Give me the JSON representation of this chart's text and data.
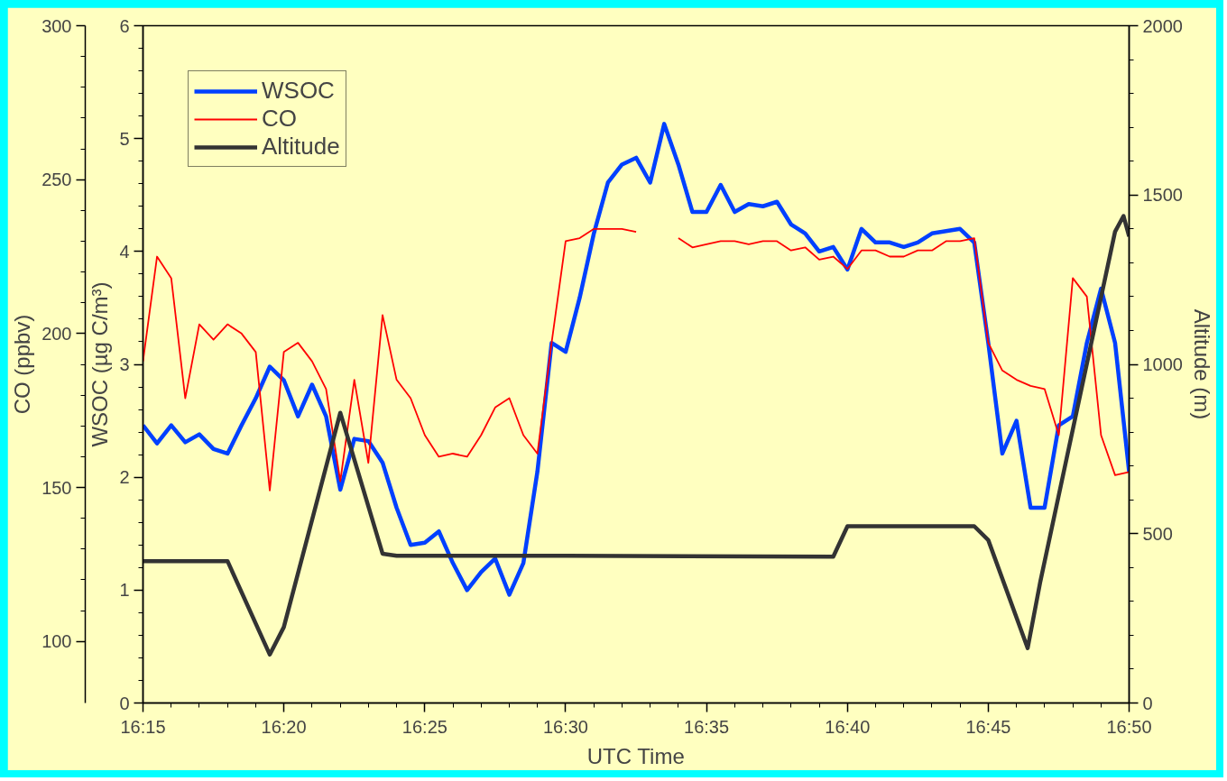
{
  "chart_data": {
    "type": "line",
    "xlabel": "UTC Time",
    "ylabel": "WSOC (µg C/m³)",
    "y2label": "CO (ppbv)",
    "y3label": "Altitude (m)",
    "x": [
      16.25,
      16.2583,
      16.2667,
      16.275,
      16.2833,
      16.2917,
      16.3,
      16.3083,
      16.3167,
      16.325,
      16.3333,
      16.3417,
      16.35,
      16.3583,
      16.3667,
      16.375,
      16.3833,
      16.3917,
      16.4,
      16.4083,
      16.4167,
      16.425,
      16.4333,
      16.4417,
      16.45,
      16.4583,
      16.4667,
      16.475,
      16.4833,
      16.4917,
      16.5,
      16.5083,
      16.5167,
      16.525,
      16.5333,
      16.5417,
      16.55,
      16.5583,
      16.5667,
      16.575,
      16.5833,
      16.5917,
      16.6,
      16.6083,
      16.6167,
      16.625,
      16.6333,
      16.6417,
      16.65,
      16.6583,
      16.6667,
      16.675,
      16.6833,
      16.6917,
      16.7,
      16.7083,
      16.7167,
      16.725,
      16.7333,
      16.7417,
      16.75,
      16.7583,
      16.7667,
      16.775,
      16.7833,
      16.7917,
      16.8,
      16.8083,
      16.8167,
      16.825,
      16.8333
    ],
    "series": [
      {
        "name": "WSOC",
        "color": "#0040ff",
        "values": [
          2.46,
          2.3,
          2.46,
          2.31,
          2.38,
          2.25,
          2.21,
          2.46,
          2.7,
          2.98,
          2.86,
          2.54,
          2.82,
          2.54,
          1.89,
          2.34,
          2.32,
          2.13,
          1.73,
          1.4,
          1.42,
          1.52,
          1.24,
          1.0,
          1.16,
          1.28,
          0.96,
          1.24,
          2.05,
          3.19,
          3.11,
          3.59,
          4.16,
          4.61,
          4.77,
          4.83,
          4.61,
          5.13,
          4.77,
          4.35,
          4.35,
          4.59,
          4.35,
          4.42,
          4.4,
          4.44,
          4.24,
          4.16,
          4.0,
          4.04,
          3.84,
          4.2,
          4.08,
          4.08,
          4.04,
          4.08,
          4.16,
          4.18,
          4.2,
          4.08,
          3.19,
          2.21,
          2.5,
          1.73,
          1.73,
          2.46,
          2.54,
          3.19,
          3.67,
          3.19,
          2.05
        ]
      },
      {
        "name": "CO",
        "color": "#ff0000",
        "axis": "y2",
        "values": [
          191,
          225,
          218,
          179,
          203,
          198,
          203,
          200,
          194,
          149,
          194,
          197,
          191,
          182,
          152,
          185,
          158,
          206,
          185,
          179,
          167,
          160,
          161,
          160,
          167,
          176,
          179,
          167,
          161,
          197,
          230,
          231,
          234,
          234,
          234,
          233,
          null,
          null,
          231,
          228,
          229,
          230,
          230,
          229,
          230,
          230,
          227,
          228,
          224,
          225,
          221,
          227,
          227,
          225,
          225,
          227,
          227,
          230,
          230,
          231,
          197,
          188,
          185,
          183,
          182,
          167,
          218,
          212,
          167,
          154,
          155
        ]
      },
      {
        "name": "Altitude",
        "color": "#333333",
        "axis": "y3",
        "x": [
          16.25,
          16.3,
          16.325,
          16.3333,
          16.3667,
          16.3917,
          16.4,
          16.5,
          16.6583,
          16.6667,
          16.7417,
          16.75,
          16.7733,
          16.7808,
          16.825,
          16.83,
          16.8333
        ],
        "values": [
          419,
          419,
          143,
          224,
          857,
          441,
          435,
          435,
          432,
          522,
          522,
          481,
          162,
          359,
          1392,
          1438,
          1378
        ]
      }
    ],
    "xlim": [
      16.25,
      16.8333
    ],
    "xticks": [
      {
        "value": 16.25,
        "label": "16:15"
      },
      {
        "value": 16.3333,
        "label": "16:20"
      },
      {
        "value": 16.4167,
        "label": "16:25"
      },
      {
        "value": 16.5,
        "label": "16:30"
      },
      {
        "value": 16.5833,
        "label": "16:35"
      },
      {
        "value": 16.6667,
        "label": "16:40"
      },
      {
        "value": 16.75,
        "label": "16:45"
      },
      {
        "value": 16.8333,
        "label": "16:50"
      }
    ],
    "ylim": [
      0,
      6
    ],
    "yticks": [
      0,
      1,
      2,
      3,
      4,
      5,
      6
    ],
    "y2lim": [
      80,
      300
    ],
    "y2ticks": [
      100,
      150,
      200,
      250,
      300
    ],
    "y3lim": [
      0,
      2000
    ],
    "y3ticks": [
      0,
      500,
      1000,
      1500,
      2000
    ],
    "grid": false,
    "legend": "top left"
  }
}
